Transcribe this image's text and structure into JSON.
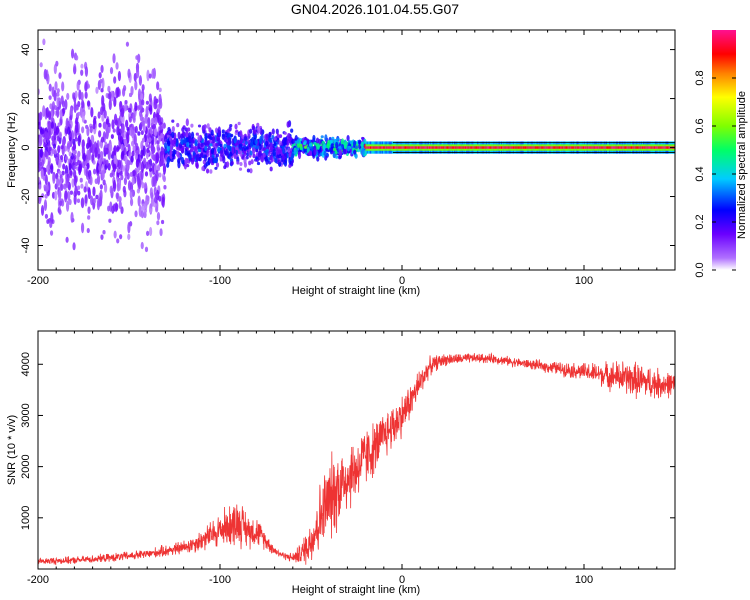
{
  "figure_title": "GN04.2026.101.04.55.G07",
  "colors": {
    "snr_line": "#ee3333",
    "zero_line": "#e0205a",
    "frame": "#000000",
    "background": "#ffffff"
  },
  "chart_data": [
    {
      "type": "heatmap",
      "title": "GN04.2026.101.04.55.G07",
      "xlabel": "Height of straight line (km)",
      "ylabel": "Frequency (Hz)",
      "xlim": [
        -200,
        150
      ],
      "ylim": [
        -50,
        48
      ],
      "xticks": [
        -200,
        -100,
        0,
        100
      ],
      "xtick_labels": [
        "-200",
        "-100",
        "0",
        "100"
      ],
      "yticks": [
        -40,
        -20,
        0,
        20,
        40
      ],
      "ytick_labels": [
        "-40",
        "-20",
        "0",
        "20",
        "40"
      ],
      "colorbar": {
        "label": "Normalized spectral amplitude",
        "range": [
          0.0,
          1.0
        ],
        "ticks": [
          0.0,
          0.2,
          0.4,
          0.6,
          0.8
        ],
        "tick_labels": [
          "0.0",
          "0.2",
          "0.4",
          "0.6",
          "0.8"
        ],
        "colormap": "rainbow (violet to red to magenta)"
      },
      "description_regions": [
        {
          "x_range": [
            -200,
            -130
          ],
          "freq_spread": 48,
          "amplitude": 0.15
        },
        {
          "x_range": [
            -130,
            -60
          ],
          "freq_spread": 12,
          "amplitude": 0.3
        },
        {
          "x_range": [
            -60,
            -20
          ],
          "freq_spread": 5,
          "amplitude": 0.5
        },
        {
          "x_range": [
            -20,
            150
          ],
          "freq_spread": 1,
          "amplitude": 0.95
        }
      ]
    },
    {
      "type": "line",
      "xlabel": "Height of straight line (km)",
      "ylabel": "SNR (10 * v/v)",
      "xlim": [
        -200,
        150
      ],
      "ylim": [
        0,
        4650
      ],
      "xticks": [
        -200,
        -100,
        0,
        100
      ],
      "xtick_labels": [
        "-200",
        "-100",
        "0",
        "100"
      ],
      "yticks": [
        1000,
        2000,
        3000,
        4000
      ],
      "ytick_labels": [
        "1000",
        "2000",
        "3000",
        "4000"
      ],
      "series": [
        {
          "name": "SNR",
          "x": [
            -200,
            -180,
            -160,
            -140,
            -120,
            -110,
            -100,
            -95,
            -90,
            -85,
            -80,
            -75,
            -70,
            -65,
            -60,
            -55,
            -50,
            -45,
            -40,
            -35,
            -30,
            -25,
            -20,
            -15,
            -10,
            -5,
            0,
            5,
            10,
            15,
            20,
            25,
            30,
            40,
            50,
            60,
            70,
            80,
            90,
            100,
            110,
            120,
            130,
            140,
            150
          ],
          "y": [
            150,
            170,
            220,
            290,
            420,
            560,
            760,
            860,
            920,
            760,
            740,
            560,
            360,
            260,
            220,
            310,
            560,
            1000,
            1350,
            1600,
            1800,
            1950,
            2200,
            2350,
            2600,
            2800,
            3000,
            3300,
            3650,
            3950,
            4050,
            4100,
            4100,
            4120,
            4110,
            4050,
            4000,
            3950,
            3900,
            3850,
            3800,
            3750,
            3680,
            3620,
            3600
          ],
          "noise": [
            60,
            60,
            70,
            80,
            120,
            180,
            300,
            350,
            400,
            300,
            250,
            150,
            80,
            60,
            80,
            200,
            400,
            600,
            700,
            700,
            600,
            550,
            500,
            450,
            400,
            400,
            350,
            300,
            250,
            160,
            120,
            100,
            90,
            80,
            80,
            80,
            80,
            100,
            120,
            150,
            200,
            280,
            300,
            260,
            200
          ]
        }
      ]
    }
  ]
}
